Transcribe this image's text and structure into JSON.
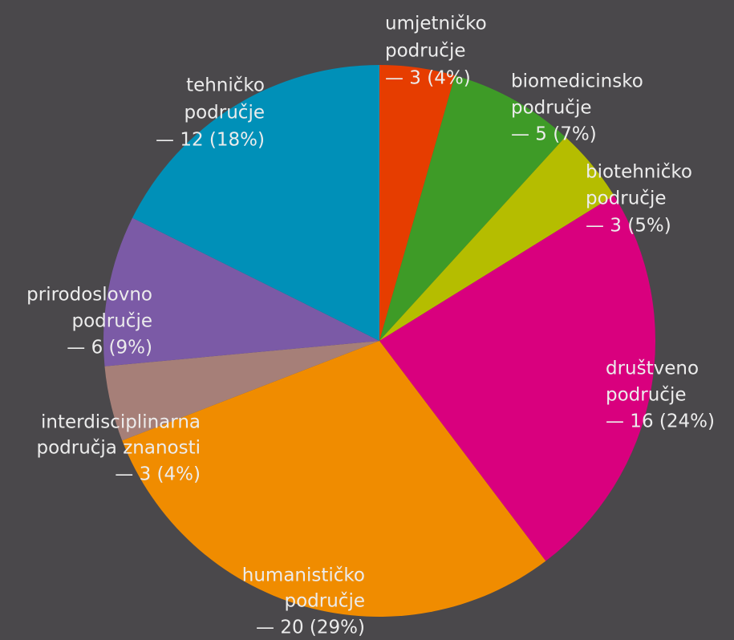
{
  "chart_data": {
    "type": "pie",
    "categories": [
      [
        "umjetničko",
        "područje"
      ],
      [
        "biomedicinsko",
        "područje"
      ],
      [
        "biotehničko",
        "područje"
      ],
      [
        "društveno",
        "područje"
      ],
      [
        "humanističko",
        "područje"
      ],
      [
        "interdisciplinarna",
        "područja znanosti"
      ],
      [
        "prirodoslovno",
        "područje"
      ],
      [
        "tehničko",
        "područje"
      ]
    ],
    "values": [
      3,
      5,
      3,
      16,
      20,
      3,
      6,
      12
    ],
    "value_labels": [
      "— 3 (4%)",
      "— 5 (7%)",
      "— 3 (5%)",
      "— 16 (24%)",
      "— 20 (29%)",
      "— 3 (4%)",
      "— 6 (9%)",
      "— 12 (18%)"
    ],
    "colors": [
      "#e63d00",
      "#3e9b27",
      "#b5bd00",
      "#d9007e",
      "#f08c00",
      "#a67f78",
      "#7b5aa6",
      "#0090b8"
    ]
  }
}
